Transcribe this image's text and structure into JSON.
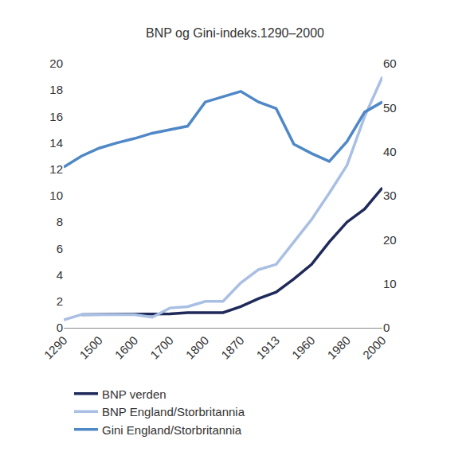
{
  "chart_data": {
    "type": "line",
    "title": "BNP og Gini-indeks.1290–2000",
    "categories": [
      "1290",
      null,
      "1500",
      null,
      "1600",
      null,
      "1700",
      null,
      "1800",
      null,
      "1870",
      null,
      "1913",
      null,
      "1960",
      null,
      "1980",
      null,
      "2000"
    ],
    "series": [
      {
        "name": "BNP verden",
        "color": "#1f2a5a",
        "axis": "y",
        "values": [
          null,
          1.0,
          1.0,
          1.0,
          1.0,
          1.0,
          1.05,
          1.15,
          1.15,
          1.15,
          1.6,
          2.2,
          2.7,
          3.7,
          4.8,
          6.5,
          8.0,
          9.0,
          10.6
        ]
      },
      {
        "name": "BNP England/Storbritannia",
        "color": "#a9bfe3",
        "axis": "y",
        "values": [
          0.6,
          1.0,
          1.0,
          1.0,
          1.0,
          0.8,
          1.5,
          1.6,
          2.0,
          2.0,
          3.4,
          4.4,
          4.8,
          6.5,
          8.2,
          10.2,
          12.3,
          16.0,
          19.0
        ]
      },
      {
        "name": "Gini England/Storbritannia",
        "color": "#4f88c6",
        "axis": "y2",
        "values": [
          36.5,
          39.0,
          40.8,
          42.0,
          43.0,
          44.2,
          45.0,
          45.8,
          51.3,
          52.5,
          53.7,
          51.3,
          49.8,
          41.7,
          39.6,
          37.8,
          42.3,
          49.0,
          51.3
        ]
      }
    ],
    "ylim": [
      0,
      20
    ],
    "yticks": [
      0,
      2,
      4,
      6,
      8,
      10,
      12,
      14,
      16,
      18,
      20
    ],
    "y2lim": [
      0,
      60
    ],
    "y2ticks": [
      0,
      10,
      20,
      30,
      40,
      50,
      60
    ],
    "grid": false,
    "legend": "bottom"
  }
}
